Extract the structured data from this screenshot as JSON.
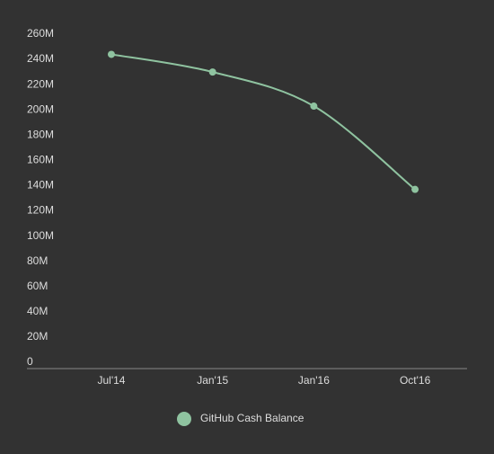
{
  "chart_data": {
    "type": "line",
    "categories": [
      "Jul'14",
      "Jan'15",
      "Jan'16",
      "Oct'16"
    ],
    "series": [
      {
        "name": "GitHub Cash Balance",
        "color": "#8fc3a0",
        "values": [
          244000000,
          230000000,
          203000000,
          137000000
        ]
      }
    ],
    "ylim": [
      0,
      260000000
    ],
    "yticks": [
      {
        "value": 0,
        "label": "0"
      },
      {
        "value": 20000000,
        "label": "20M"
      },
      {
        "value": 40000000,
        "label": "40M"
      },
      {
        "value": 60000000,
        "label": "60M"
      },
      {
        "value": 80000000,
        "label": "80M"
      },
      {
        "value": 100000000,
        "label": "100M"
      },
      {
        "value": 120000000,
        "label": "120M"
      },
      {
        "value": 140000000,
        "label": "140M"
      },
      {
        "value": 160000000,
        "label": "160M"
      },
      {
        "value": 180000000,
        "label": "180M"
      },
      {
        "value": 200000000,
        "label": "200M"
      },
      {
        "value": 220000000,
        "label": "220M"
      },
      {
        "value": 240000000,
        "label": "240M"
      },
      {
        "value": 260000000,
        "label": "260M"
      }
    ],
    "grid": false,
    "legend": "bottom"
  }
}
